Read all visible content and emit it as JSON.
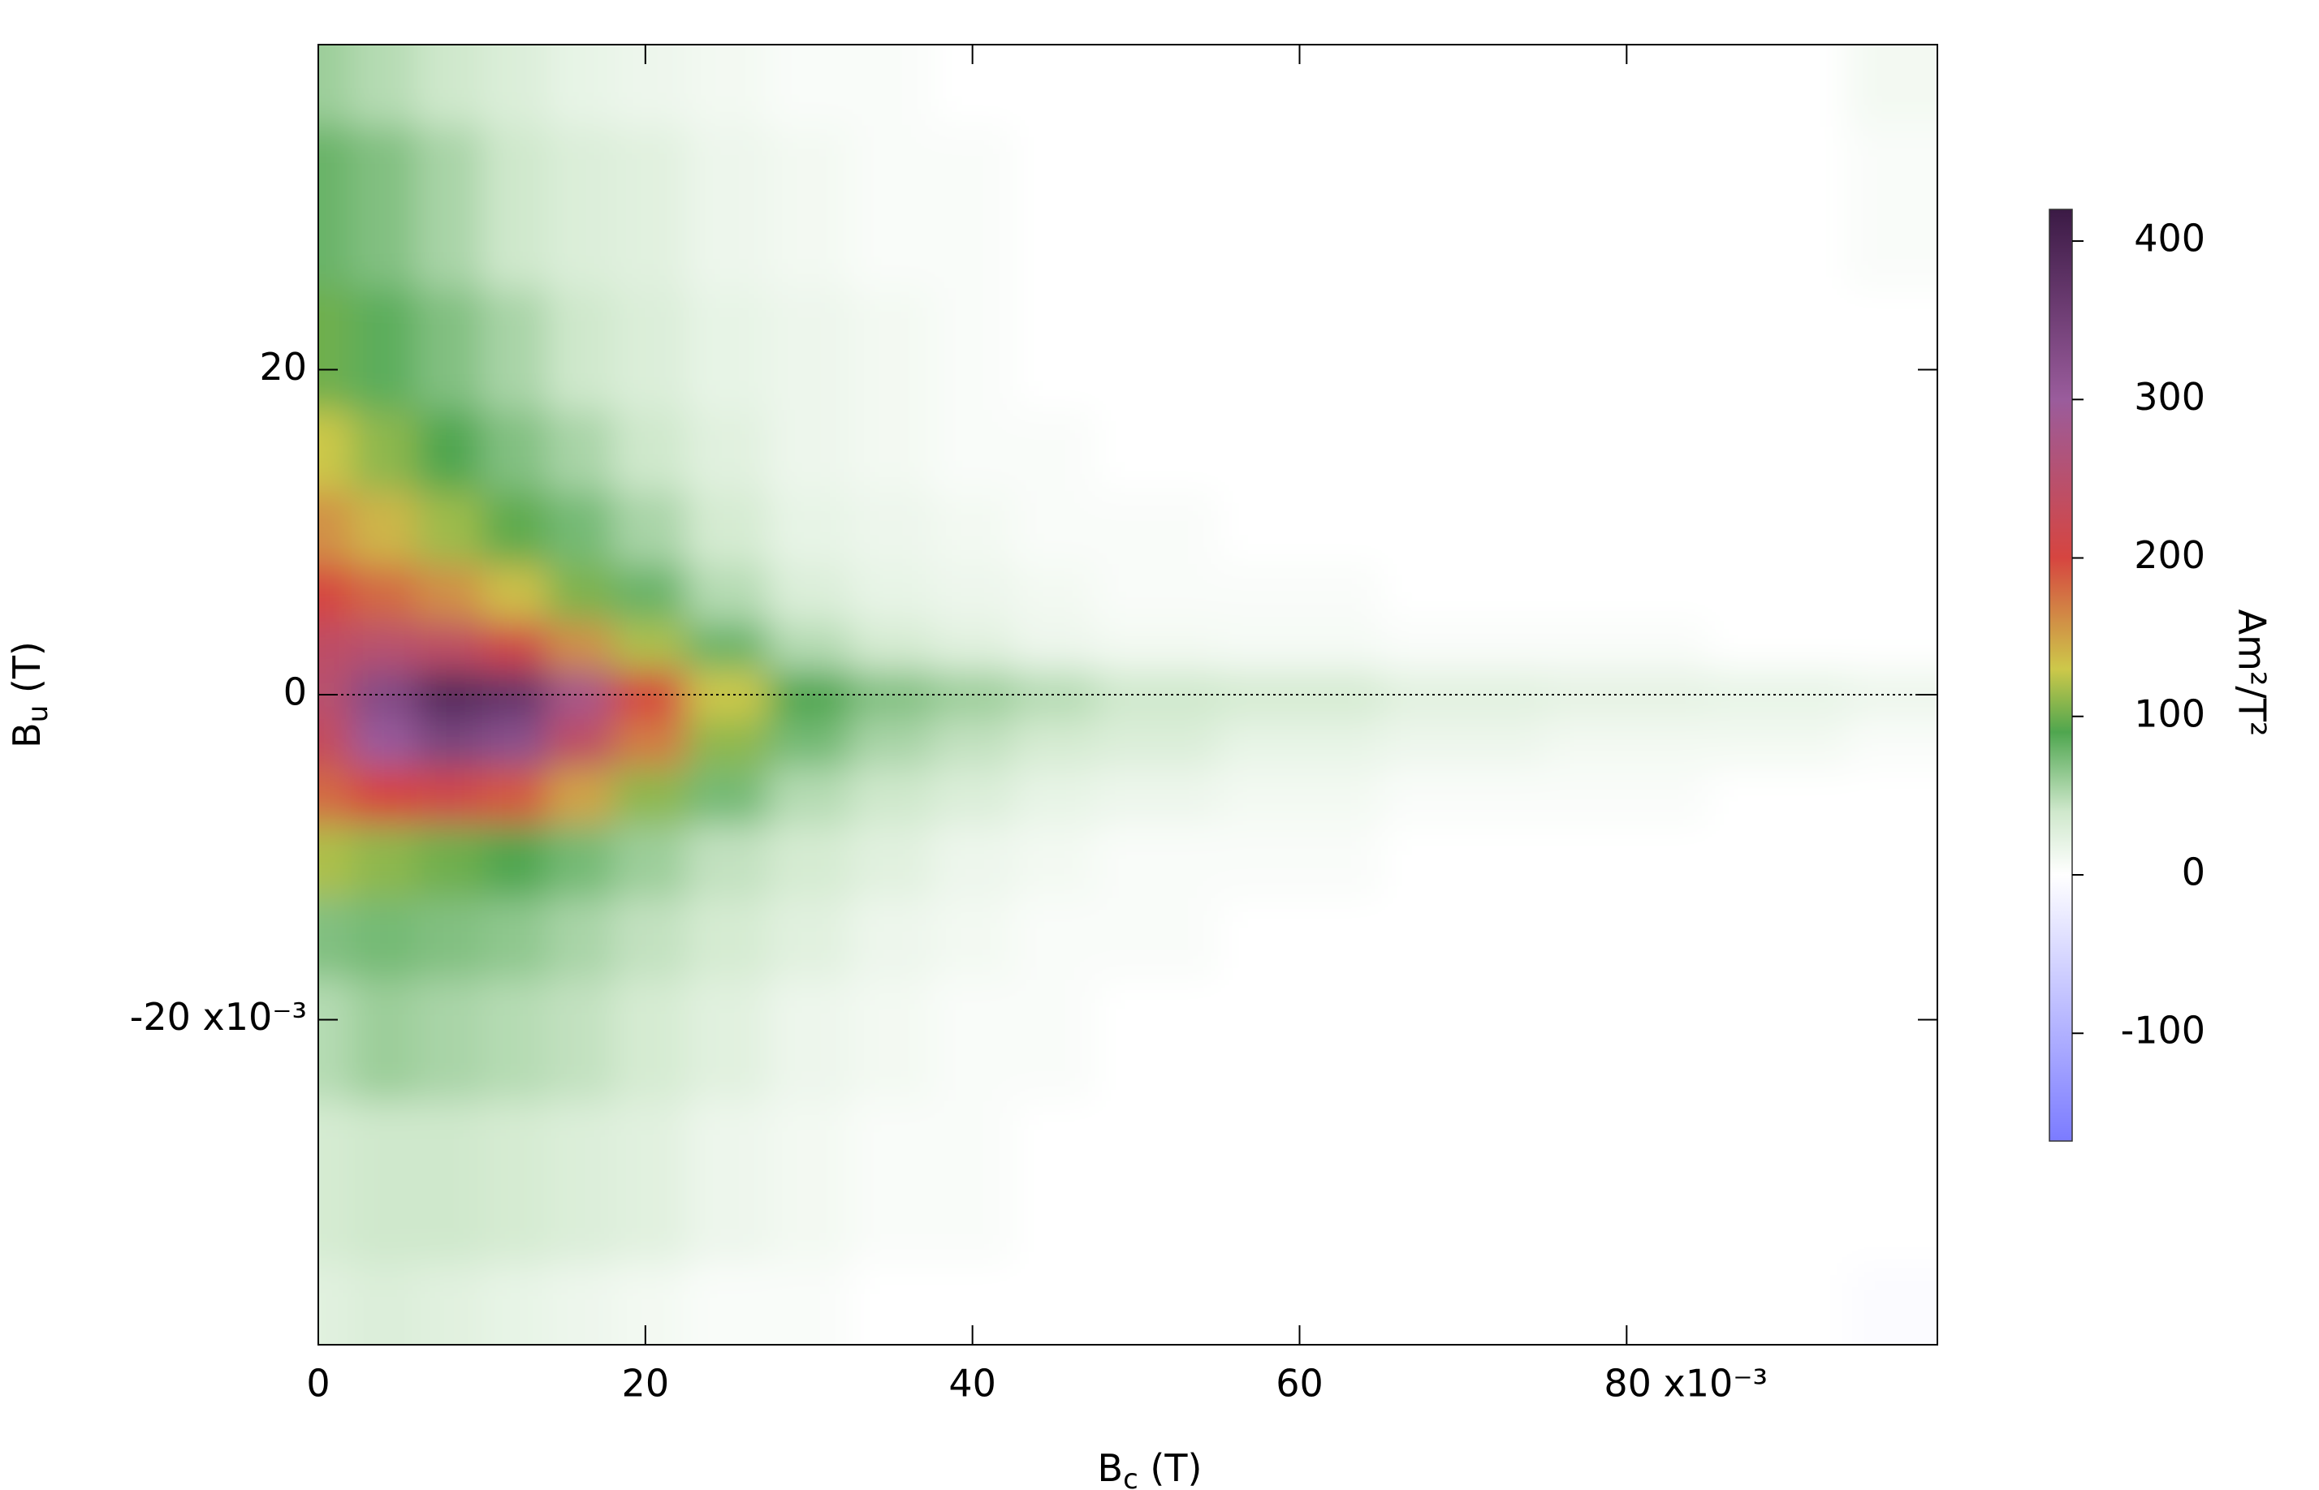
{
  "chart_data": {
    "type": "heatmap",
    "xlabel": {
      "main": "B",
      "sub": "c",
      "rest": " (T)"
    },
    "ylabel": {
      "main": "B",
      "sub": "u",
      "rest": " (T)"
    },
    "colorbar_label": "Am²/T²",
    "xlim": [
      0,
      99
    ],
    "ylim": [
      -40,
      40
    ],
    "zlim": [
      -168,
      420
    ],
    "xticks": [
      0,
      20,
      40,
      60,
      {
        "value": 80,
        "label": "80 x10⁻³"
      }
    ],
    "yticks": [
      {
        "value": -20,
        "label": "-20 x10⁻³"
      },
      0,
      20
    ],
    "zticks": [
      -100,
      0,
      100,
      200,
      300,
      400
    ],
    "colormap": [
      {
        "value": -168,
        "color": "#7b7bff"
      },
      {
        "value": 0,
        "color": "#ffffff"
      },
      {
        "value": 40,
        "color": "#cfe8cc"
      },
      {
        "value": 90,
        "color": "#4fa64f"
      },
      {
        "value": 130,
        "color": "#cdc84a"
      },
      {
        "value": 200,
        "color": "#d64540"
      },
      {
        "value": 300,
        "color": "#9a5c9c"
      },
      {
        "value": 420,
        "color": "#3b1a45"
      }
    ],
    "x": [
      0,
      4,
      8,
      12,
      16,
      20,
      25,
      30,
      35,
      40,
      45,
      50,
      60,
      70,
      80,
      90,
      97
    ],
    "y": [
      40,
      30,
      20,
      15,
      10,
      6,
      3,
      0,
      -3,
      -6,
      -10,
      -15,
      -20,
      -30,
      -40
    ],
    "z": [
      [
        60,
        50,
        40,
        30,
        20,
        15,
        10,
        5,
        5,
        0,
        0,
        0,
        0,
        0,
        0,
        0,
        10
      ],
      [
        80,
        70,
        55,
        40,
        30,
        25,
        15,
        10,
        5,
        5,
        0,
        0,
        0,
        0,
        0,
        0,
        5
      ],
      [
        100,
        85,
        70,
        55,
        40,
        30,
        20,
        15,
        10,
        5,
        0,
        0,
        0,
        0,
        0,
        0,
        0
      ],
      [
        130,
        110,
        90,
        70,
        55,
        40,
        25,
        15,
        10,
        5,
        5,
        0,
        0,
        0,
        0,
        0,
        0
      ],
      [
        160,
        140,
        115,
        95,
        75,
        55,
        35,
        20,
        15,
        10,
        5,
        5,
        0,
        0,
        0,
        0,
        0
      ],
      [
        200,
        180,
        160,
        135,
        105,
        80,
        50,
        30,
        20,
        15,
        10,
        5,
        5,
        0,
        0,
        0,
        0
      ],
      [
        240,
        250,
        240,
        210,
        160,
        120,
        80,
        50,
        35,
        25,
        15,
        10,
        8,
        5,
        5,
        0,
        0
      ],
      [
        250,
        330,
        390,
        370,
        280,
        200,
        130,
        90,
        70,
        60,
        50,
        40,
        35,
        25,
        22,
        20,
        15
      ],
      [
        230,
        300,
        340,
        320,
        240,
        170,
        110,
        75,
        55,
        45,
        35,
        30,
        20,
        15,
        10,
        10,
        5
      ],
      [
        180,
        200,
        210,
        190,
        150,
        110,
        75,
        50,
        40,
        30,
        20,
        15,
        10,
        5,
        5,
        0,
        0
      ],
      [
        120,
        110,
        100,
        90,
        75,
        60,
        45,
        35,
        25,
        15,
        10,
        5,
        5,
        0,
        0,
        0,
        0
      ],
      [
        70,
        75,
        70,
        65,
        55,
        45,
        35,
        25,
        15,
        10,
        5,
        5,
        0,
        0,
        0,
        0,
        0
      ],
      [
        50,
        60,
        55,
        50,
        45,
        35,
        25,
        15,
        10,
        5,
        5,
        0,
        0,
        0,
        0,
        0,
        0
      ],
      [
        35,
        40,
        40,
        35,
        30,
        25,
        15,
        10,
        5,
        5,
        0,
        0,
        0,
        0,
        0,
        0,
        0
      ],
      [
        25,
        30,
        25,
        20,
        15,
        10,
        5,
        5,
        0,
        0,
        0,
        0,
        0,
        0,
        0,
        0,
        -5
      ]
    ]
  }
}
